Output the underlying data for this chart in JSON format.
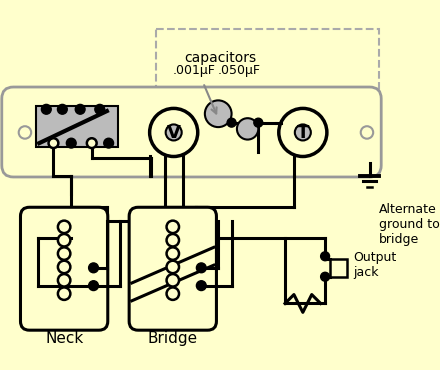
{
  "bg_color": "#FFFFCC",
  "line_color": "#000000",
  "gray_color": "#BBBBBB",
  "plate_color": "#FFFFCC",
  "plate_border": "#999999",
  "dashed_color": "#AAAAAA",
  "labels": {
    "neck": "Neck",
    "bridge": "Bridge",
    "capacitors": "capacitors",
    "cap1": ".001μF",
    "cap2": ".050μF",
    "alt_ground": "Alternate\nground to\nbridge",
    "output_jack": "Output\njack",
    "V": "V",
    "T": "T"
  },
  "figsize": [
    4.4,
    3.7
  ],
  "dpi": 100
}
